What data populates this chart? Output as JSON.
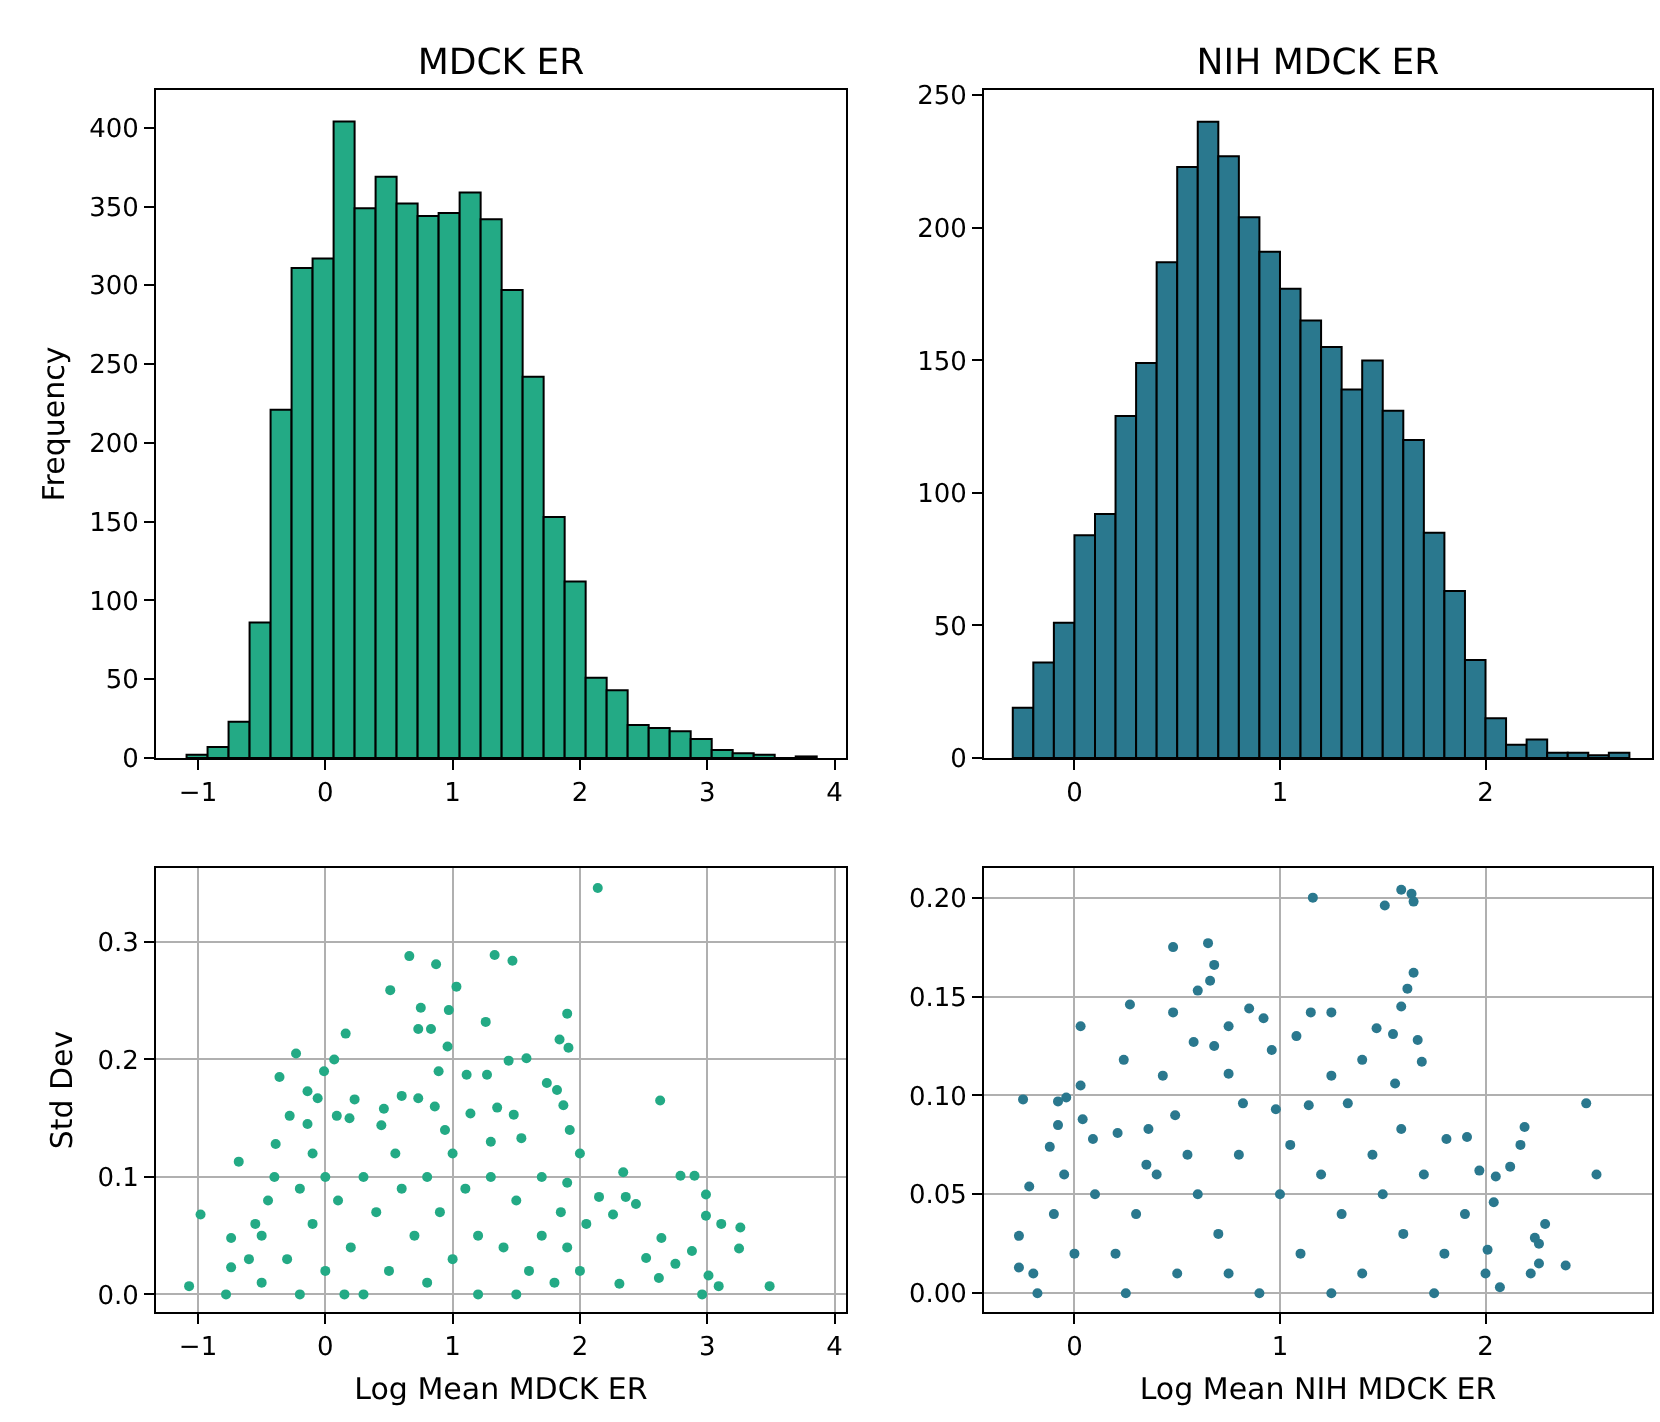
{
  "chart_data": [
    {
      "type": "histogram",
      "title": "MDCK ER",
      "ylabel": "Frequency",
      "color": "#23aa85",
      "bins": [
        -1.09,
        -0.925,
        -0.76,
        -0.595,
        -0.43,
        -0.265,
        -0.1,
        0.065,
        0.23,
        0.395,
        0.56,
        0.725,
        0.89,
        1.055,
        1.22,
        1.385,
        1.55,
        1.715,
        1.88,
        2.045,
        2.21,
        2.375,
        2.54,
        2.705,
        2.87,
        3.035,
        3.2,
        3.365,
        3.53,
        3.695,
        3.86
      ],
      "values": [
        2,
        7,
        23,
        86,
        221,
        311,
        317,
        404,
        349,
        369,
        352,
        344,
        346,
        359,
        342,
        297,
        242,
        153,
        112,
        51,
        43,
        21,
        19,
        17,
        12,
        5,
        3,
        2,
        0,
        1
      ],
      "xlim": [
        -1.33,
        4.09
      ],
      "xticks": [
        {
          "value": -1,
          "label": "−1"
        },
        0,
        1,
        2,
        3,
        4
      ],
      "ylim": [
        0,
        424
      ],
      "yticks": [
        0,
        50,
        100,
        150,
        200,
        250,
        300,
        350,
        400
      ],
      "grid": false
    },
    {
      "type": "histogram",
      "title": "NIH MDCK ER",
      "color": "#2a788e",
      "bins": [
        -0.3,
        -0.2,
        -0.1,
        0,
        0.1,
        0.2,
        0.3,
        0.4,
        0.5,
        0.6,
        0.7,
        0.8,
        0.9,
        1,
        1.1,
        1.2,
        1.3,
        1.4,
        1.5,
        1.6,
        1.7,
        1.8,
        1.9,
        2,
        2.1,
        2.2,
        2.3,
        2.4,
        2.5,
        2.6,
        2.7
      ],
      "values": [
        19,
        36,
        51,
        84,
        92,
        129,
        149,
        187,
        223,
        240,
        227,
        204,
        191,
        177,
        165,
        155,
        139,
        150,
        131,
        120,
        85,
        63,
        37,
        15,
        5,
        7,
        2,
        2,
        1,
        2
      ],
      "xlim": [
        -0.44,
        2.81
      ],
      "xticks": [
        0,
        1,
        2
      ],
      "ylim": [
        0,
        252
      ],
      "yticks": [
        0,
        50,
        100,
        150,
        200,
        250
      ],
      "grid": false
    },
    {
      "type": "scatter",
      "xlabel": "Log Mean MDCK ER",
      "ylabel": "Std Dev",
      "color": "#23aa85",
      "marker": "circle",
      "grid": true,
      "x": [
        2.14,
        0.66,
        1.33,
        1.47,
        0.87,
        0.51,
        1.03,
        0.75,
        0.97,
        1.9,
        0.73,
        0.83,
        1.26,
        0.16,
        1.84,
        1.91,
        0.96,
        -0.23,
        0.07,
        1.44,
        1.58,
        -0.36,
        -0.01,
        0.89,
        1.11,
        1.27,
        1.74,
        1.82,
        2.63,
        -0.14,
        -0.06,
        0.6,
        0.73,
        0.23,
        1.35,
        1.87,
        0.46,
        0.86,
        -0.28,
        0.09,
        0.19,
        1.48,
        1.14,
        -0.14,
        0.44,
        1.92,
        0.94,
        1.54,
        -0.39,
        -0.68,
        -0.98,
        -1.07,
        -0.78,
        -0.74,
        -0.74,
        2.0,
        2.34,
        2.79,
        2.9,
        2.99,
        2.99,
        3.11,
        3.26,
        3.25,
        3.49,
        3.09,
        3.01,
        2.96,
        2.88,
        2.64,
        2.36,
        2.44,
        2.26,
        2.15,
        2.75,
        2.52,
        2.31,
        2.62,
        -0.5,
        -0.5,
        -0.45,
        -0.4,
        -0.3,
        -0.2,
        -0.1,
        0,
        0,
        0.1,
        0.2,
        0.3,
        0.3,
        0.4,
        0.5,
        0.6,
        0.7,
        0.8,
        0.8,
        0.9,
        1.0,
        1.0,
        1.1,
        1.2,
        1.2,
        1.3,
        1.4,
        1.5,
        1.6,
        1.7,
        1.7,
        1.8,
        1.85,
        1.9,
        2.0,
        2.05,
        -0.6,
        -0.55,
        0.15,
        1.5,
        -0.2,
        0.55,
        1.3,
        -0.1,
        1.9
      ],
      "values": [
        0.346,
        0.288,
        0.289,
        0.284,
        0.281,
        0.259,
        0.262,
        0.244,
        0.242,
        0.239,
        0.226,
        0.226,
        0.232,
        0.222,
        0.217,
        0.21,
        0.211,
        0.205,
        0.2,
        0.199,
        0.201,
        0.185,
        0.19,
        0.19,
        0.187,
        0.187,
        0.18,
        0.174,
        0.165,
        0.173,
        0.167,
        0.169,
        0.167,
        0.166,
        0.159,
        0.161,
        0.158,
        0.16,
        0.152,
        0.152,
        0.15,
        0.153,
        0.154,
        0.145,
        0.144,
        0.14,
        0.14,
        0.133,
        0.128,
        0.113,
        0.068,
        0.007,
        0.0,
        0.023,
        0.048,
        0.12,
        0.104,
        0.101,
        0.101,
        0.085,
        0.067,
        0.06,
        0.057,
        0.039,
        0.007,
        0.007,
        0.016,
        0.0,
        0.037,
        0.048,
        0.083,
        0.077,
        0.068,
        0.083,
        0.026,
        0.031,
        0.009,
        0.014,
        0.01,
        0.05,
        0.08,
        0.1,
        0.03,
        0.09,
        0.06,
        0.1,
        0.02,
        0.08,
        0.04,
        0.1,
        0.0,
        0.07,
        0.02,
        0.09,
        0.05,
        0.1,
        0.01,
        0.07,
        0.03,
        0.12,
        0.09,
        0.05,
        0.0,
        0.1,
        0.04,
        0.08,
        0.02,
        0.1,
        0.05,
        0.01,
        0.07,
        0.04,
        0.02,
        0.06,
        0.03,
        0.06,
        0.0,
        0.0,
        0.0,
        0.12,
        0.13,
        0.12,
        0.095
      ],
      "xlim": [
        -1.33,
        4.09
      ],
      "xticks": [
        {
          "value": -1,
          "label": "−1"
        },
        0,
        1,
        2,
        3,
        4
      ],
      "ylim": [
        -0.015,
        0.363
      ],
      "yticks": [
        {
          "value": 0,
          "label": "0.0"
        },
        0.1,
        0.2,
        0.3
      ]
    },
    {
      "type": "scatter",
      "xlabel": "Log Mean NIH MDCK ER",
      "color": "#2a788e",
      "marker": "circle",
      "grid": true,
      "x": [
        1.59,
        1.64,
        1.65,
        1.51,
        1.16,
        0.65,
        0.48,
        0.68,
        0.66,
        0.6,
        1.65,
        1.62,
        1.59,
        0.27,
        0.85,
        0.92,
        1.15,
        1.25,
        0.48,
        0.03,
        0.75,
        1.47,
        1.55,
        1.08,
        1.67,
        0.58,
        0.68,
        0.24,
        1.4,
        0.96,
        1.69,
        0.75,
        0.43,
        1.25,
        1.56,
        0.03,
        -0.25,
        -0.04,
        -0.08,
        2.49,
        2.54,
        2.19,
        2.17,
        2.12,
        2.05,
        2.29,
        2.26,
        2.24,
        2.39,
        2.22,
        2.26,
        2.07,
        -0.18,
        -0.27,
        -0.27,
        -0.22,
        -0.12,
        -0.08,
        0.04,
        0.09,
        0.21,
        0.36,
        0.49,
        0.82,
        0.98,
        1.14,
        1.33,
        1.59,
        1.81,
        1.91,
        1.97,
        2.04,
        2.01,
        0.1,
        0.2,
        0.3,
        0.4,
        0.5,
        0.6,
        0.7,
        0.8,
        0.9,
        1.0,
        1.1,
        1.2,
        1.3,
        1.4,
        1.5,
        1.6,
        1.7,
        1.8,
        1.9,
        2.0,
        0.0,
        -0.1,
        -0.2,
        0.25,
        0.75,
        1.25,
        1.75,
        0.55,
        1.05,
        1.45,
        -0.05,
        0.35
      ],
      "values": [
        0.204,
        0.202,
        0.198,
        0.196,
        0.2,
        0.177,
        0.175,
        0.166,
        0.158,
        0.153,
        0.162,
        0.154,
        0.145,
        0.146,
        0.144,
        0.139,
        0.142,
        0.142,
        0.142,
        0.135,
        0.135,
        0.134,
        0.131,
        0.13,
        0.128,
        0.127,
        0.125,
        0.118,
        0.118,
        0.123,
        0.117,
        0.111,
        0.11,
        0.11,
        0.106,
        0.105,
        0.098,
        0.099,
        0.097,
        0.096,
        0.06,
        0.084,
        0.075,
        0.064,
        0.059,
        0.035,
        0.025,
        0.028,
        0.014,
        0.01,
        0.015,
        0.003,
        0.0,
        0.029,
        0.013,
        0.054,
        0.074,
        0.085,
        0.088,
        0.078,
        0.081,
        0.083,
        0.09,
        0.096,
        0.093,
        0.095,
        0.096,
        0.083,
        0.078,
        0.079,
        0.062,
        0.046,
        0.022,
        0.05,
        0.02,
        0.04,
        0.06,
        0.01,
        0.05,
        0.03,
        0.07,
        0.0,
        0.05,
        0.02,
        0.06,
        0.04,
        0.01,
        0.05,
        0.03,
        0.06,
        0.02,
        0.04,
        0.01,
        0.02,
        0.04,
        0.01,
        0.0,
        0.01,
        0.0,
        0.0,
        0.07,
        0.075,
        0.07,
        0.06,
        0.065
      ],
      "xlim": [
        -0.44,
        2.81
      ],
      "xticks": [
        0,
        1,
        2
      ],
      "ylim": [
        -0.0095,
        0.215
      ],
      "yticks": [
        {
          "value": 0,
          "label": "0.00"
        },
        {
          "value": 0.05,
          "label": "0.05"
        },
        {
          "value": 0.1,
          "label": "0.10"
        },
        {
          "value": 0.15,
          "label": "0.15"
        },
        {
          "value": 0.2,
          "label": "0.20"
        }
      ]
    }
  ]
}
